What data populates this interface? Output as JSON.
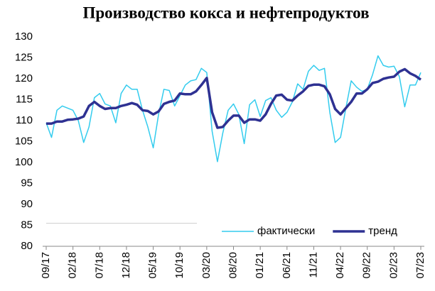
{
  "chart_data": {
    "type": "line",
    "title": "Производство кокса и нефтепродуктов",
    "categories": [
      "09/17",
      null,
      null,
      null,
      null,
      "02/18",
      null,
      null,
      null,
      null,
      "07/18",
      null,
      null,
      null,
      null,
      "12/18",
      null,
      null,
      null,
      null,
      "05/19",
      null,
      null,
      null,
      null,
      "10/19",
      null,
      null,
      null,
      null,
      "03/20",
      null,
      null,
      null,
      null,
      "08/20",
      null,
      null,
      null,
      null,
      "01/21",
      null,
      null,
      null,
      null,
      "06/21",
      null,
      null,
      null,
      null,
      "11/21",
      null,
      null,
      null,
      null,
      "04/22",
      null,
      null,
      null,
      null,
      "09/22",
      null,
      null,
      null,
      null,
      "02/23",
      null,
      null,
      null,
      null,
      "07/23"
    ],
    "series": [
      {
        "name": "фактически",
        "color": "#33ccee",
        "width": 1.5,
        "values": [
          109.5,
          106,
          112.5,
          113.5,
          113,
          112.5,
          110,
          104.8,
          108.5,
          115.5,
          116.5,
          114,
          113.5,
          109.5,
          116.5,
          118.5,
          117.5,
          117.5,
          112.5,
          108.5,
          103.5,
          111.5,
          117.5,
          117.2,
          113.5,
          116,
          118.5,
          119.5,
          119.8,
          122.5,
          121.5,
          107.5,
          100.2,
          107,
          112.5,
          114,
          111.5,
          104.5,
          113.8,
          115,
          111,
          114.8,
          115.5,
          112.5,
          110.8,
          112,
          114.5,
          118.8,
          117.5,
          121.8,
          123.2,
          122,
          122.5,
          112,
          104.8,
          106,
          113,
          119.5,
          118,
          117,
          117.5,
          121,
          125.5,
          123.2,
          122.8,
          123,
          120.5,
          113.3,
          118.5,
          118.5,
          121.5
        ]
      },
      {
        "name": "тренд",
        "color": "#2e3192",
        "width": 3.5,
        "values": [
          109.3,
          109.3,
          109.8,
          109.8,
          110.2,
          110.3,
          110.5,
          111,
          113.5,
          114.5,
          113.5,
          112.8,
          113,
          113,
          113.5,
          113.8,
          114.2,
          113.8,
          112.5,
          112.3,
          111.5,
          112.2,
          114,
          114.5,
          114.8,
          116.5,
          116.3,
          116.3,
          117,
          118.5,
          120.2,
          112,
          108.3,
          108.5,
          110,
          111.2,
          111.2,
          109.5,
          110.3,
          110.3,
          110,
          111.5,
          114,
          116,
          116.2,
          115,
          114.8,
          116,
          117,
          118.3,
          118.6,
          118.6,
          118.2,
          116.3,
          112.8,
          111.5,
          113,
          114.5,
          116.5,
          116.5,
          117.5,
          119,
          119.3,
          120,
          120.3,
          120.5,
          121.7,
          122.3,
          121.3,
          120.7,
          119.8
        ]
      }
    ],
    "ylim": [
      80,
      130
    ],
    "yticks": [
      80,
      85,
      90,
      95,
      100,
      105,
      110,
      115,
      120,
      125,
      130
    ],
    "grid": false,
    "legend": "lower right"
  }
}
